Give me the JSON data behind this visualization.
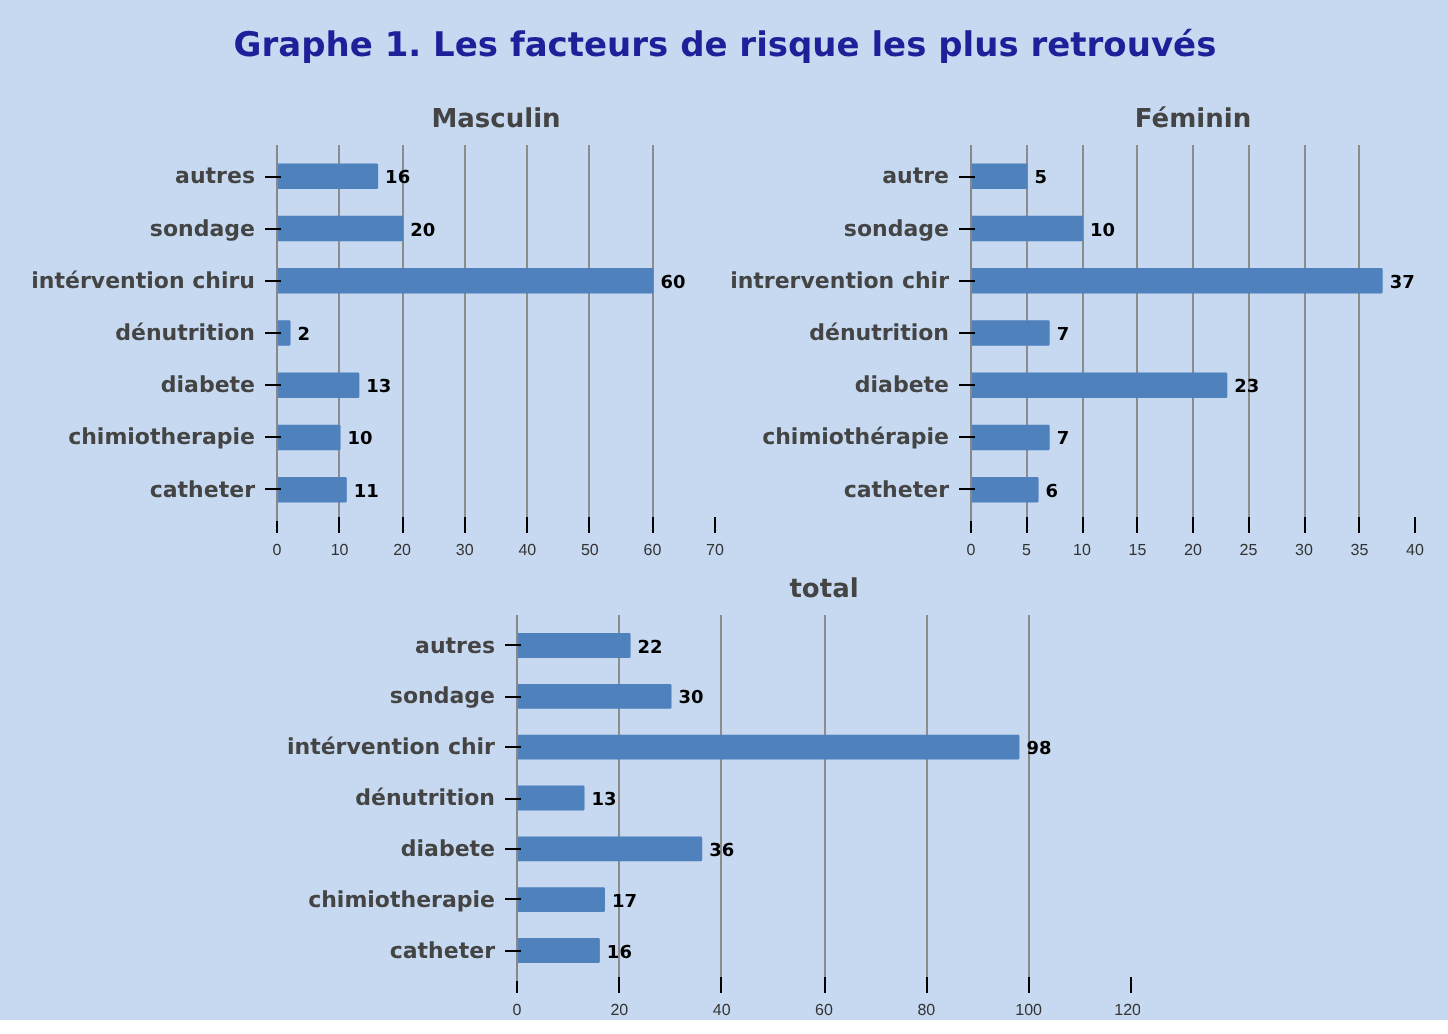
{
  "chart_data": [
    {
      "type": "other",
      "title": "Graphe 1. Les facteurs de risque les plus retrouvés"
    },
    {
      "type": "bar",
      "orientation": "horizontal",
      "title": "Masculin",
      "categories": [
        "autres",
        "sondage",
        "intérvention chiru",
        "dénutrition",
        "diabete",
        "chimiotherapie",
        "catheter"
      ],
      "values": [
        16,
        20,
        60,
        2,
        13,
        10,
        11
      ],
      "color": "#4f81bd",
      "xlim": [
        0,
        70
      ],
      "xticks": [
        0,
        10,
        20,
        30,
        40,
        50,
        60,
        70
      ],
      "grid": "x",
      "data_labels": true
    },
    {
      "type": "bar",
      "orientation": "horizontal",
      "title": "Féminin",
      "categories": [
        "autre",
        "sondage",
        "intrervention chir",
        "dénutrition",
        "diabete",
        "chimiothérapie",
        "catheter"
      ],
      "values": [
        5,
        10,
        37,
        7,
        23,
        7,
        6
      ],
      "color": "#4f81bd",
      "xlim": [
        0,
        40
      ],
      "xticks": [
        0,
        5,
        10,
        15,
        20,
        25,
        30,
        35,
        40
      ],
      "grid": "x",
      "data_labels": true
    },
    {
      "type": "bar",
      "orientation": "horizontal",
      "title": "total",
      "categories": [
        "autres",
        "sondage",
        "intérvention chir",
        "dénutrition",
        "diabete",
        "chimiotherapie",
        "catheter"
      ],
      "values": [
        22,
        30,
        98,
        13,
        36,
        17,
        16
      ],
      "color": "#4f81bd",
      "xlim": [
        0,
        120
      ],
      "xticks": [
        0,
        20,
        40,
        60,
        80,
        100,
        120
      ],
      "grid": "x",
      "data_labels": true
    }
  ]
}
